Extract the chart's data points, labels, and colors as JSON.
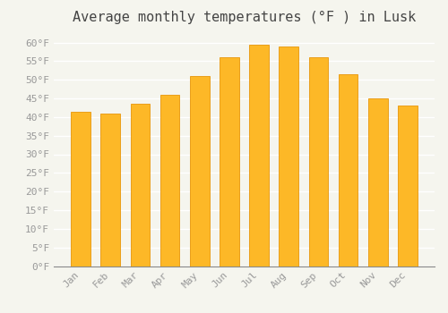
{
  "months": [
    "Jan",
    "Feb",
    "Mar",
    "Apr",
    "May",
    "Jun",
    "Jul",
    "Aug",
    "Sep",
    "Oct",
    "Nov",
    "Dec"
  ],
  "values": [
    41.5,
    41.0,
    43.5,
    46.0,
    51.0,
    56.0,
    59.5,
    59.0,
    56.0,
    51.5,
    45.0,
    43.0
  ],
  "bar_color": "#FDB827",
  "bar_edge_color": "#E8960A",
  "background_color": "#F5F5EE",
  "grid_color": "#FFFFFF",
  "title": "Average monthly temperatures (°F ) in Lusk",
  "title_fontsize": 11,
  "ylabel_ticks": [
    0,
    5,
    10,
    15,
    20,
    25,
    30,
    35,
    40,
    45,
    50,
    55,
    60
  ],
  "ylim": [
    0,
    63
  ],
  "tick_label_color": "#999999",
  "tick_label_fontsize": 8,
  "title_color": "#444444",
  "font_family": "monospace",
  "bar_width": 0.65
}
